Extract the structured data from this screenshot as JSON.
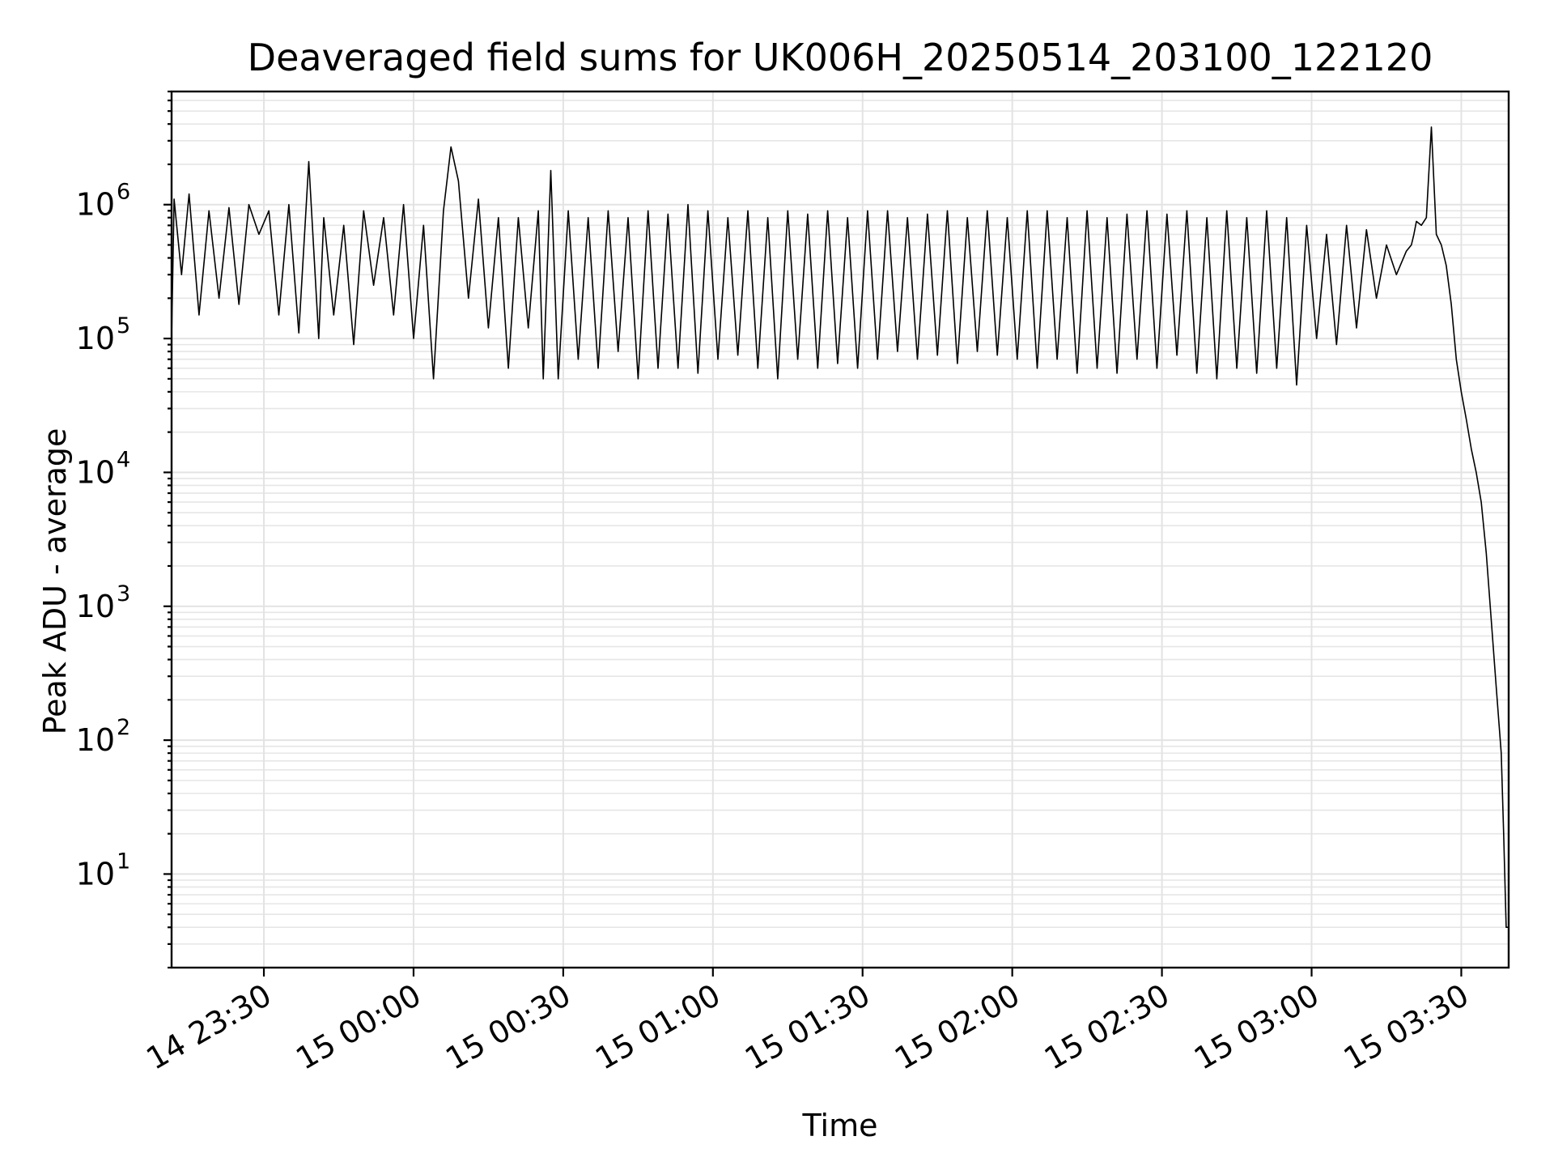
{
  "chart_data": {
    "type": "line",
    "title": "Deaveraged field sums for UK006H_20250514_203100_122120",
    "xlabel": "Time",
    "ylabel": "Peak ADU - average",
    "yscale": "log",
    "grid": true,
    "x_range": [
      "2025-05-14T23:11:30",
      "2025-05-15T03:39:30"
    ],
    "ylim": [
      2,
      7000000
    ],
    "xticks": [
      {
        "time": "2025-05-14T23:30:00",
        "label": "14 23:30"
      },
      {
        "time": "2025-05-15T00:00:00",
        "label": "15 00:00"
      },
      {
        "time": "2025-05-15T00:30:00",
        "label": "15 00:30"
      },
      {
        "time": "2025-05-15T01:00:00",
        "label": "15 01:00"
      },
      {
        "time": "2025-05-15T01:30:00",
        "label": "15 01:30"
      },
      {
        "time": "2025-05-15T02:00:00",
        "label": "15 02:00"
      },
      {
        "time": "2025-05-15T02:30:00",
        "label": "15 02:30"
      },
      {
        "time": "2025-05-15T03:00:00",
        "label": "15 03:00"
      },
      {
        "time": "2025-05-15T03:30:00",
        "label": "15 03:30"
      }
    ],
    "yticks": [
      {
        "value": 10,
        "base": "10",
        "exp": "1"
      },
      {
        "value": 100,
        "base": "10",
        "exp": "2"
      },
      {
        "value": 1000,
        "base": "10",
        "exp": "3"
      },
      {
        "value": 10000,
        "base": "10",
        "exp": "4"
      },
      {
        "value": 100000,
        "base": "10",
        "exp": "5"
      },
      {
        "value": 1000000,
        "base": "10",
        "exp": "6"
      }
    ],
    "series": [
      {
        "color": "#000000",
        "x": [
          "2025-05-14T23:11:30",
          "2025-05-14T23:12:00",
          "2025-05-14T23:13:30",
          "2025-05-14T23:15:00",
          "2025-05-14T23:17:00",
          "2025-05-14T23:19:00",
          "2025-05-14T23:21:00",
          "2025-05-14T23:23:00",
          "2025-05-14T23:25:00",
          "2025-05-14T23:27:00",
          "2025-05-14T23:29:00",
          "2025-05-14T23:31:00",
          "2025-05-14T23:33:00",
          "2025-05-14T23:35:00",
          "2025-05-14T23:37:00",
          "2025-05-14T23:39:00",
          "2025-05-14T23:41:00",
          "2025-05-14T23:42:00",
          "2025-05-14T23:44:00",
          "2025-05-14T23:46:00",
          "2025-05-14T23:48:00",
          "2025-05-14T23:50:00",
          "2025-05-14T23:52:00",
          "2025-05-14T23:54:00",
          "2025-05-14T23:56:00",
          "2025-05-14T23:58:00",
          "2025-05-15T00:00:00",
          "2025-05-15T00:02:00",
          "2025-05-15T00:04:00",
          "2025-05-15T00:06:00",
          "2025-05-15T00:07:30",
          "2025-05-15T00:09:00",
          "2025-05-15T00:11:00",
          "2025-05-15T00:13:00",
          "2025-05-15T00:15:00",
          "2025-05-15T00:17:00",
          "2025-05-15T00:19:00",
          "2025-05-15T00:21:00",
          "2025-05-15T00:23:00",
          "2025-05-15T00:25:00",
          "2025-05-15T00:26:00",
          "2025-05-15T00:27:30",
          "2025-05-15T00:29:00",
          "2025-05-15T00:31:00",
          "2025-05-15T00:33:00",
          "2025-05-15T00:35:00",
          "2025-05-15T00:37:00",
          "2025-05-15T00:39:00",
          "2025-05-15T00:41:00",
          "2025-05-15T00:43:00",
          "2025-05-15T00:45:00",
          "2025-05-15T00:47:00",
          "2025-05-15T00:49:00",
          "2025-05-15T00:51:00",
          "2025-05-15T00:53:00",
          "2025-05-15T00:55:00",
          "2025-05-15T00:57:00",
          "2025-05-15T00:59:00",
          "2025-05-15T01:01:00",
          "2025-05-15T01:03:00",
          "2025-05-15T01:05:00",
          "2025-05-15T01:07:00",
          "2025-05-15T01:09:00",
          "2025-05-15T01:11:00",
          "2025-05-15T01:13:00",
          "2025-05-15T01:15:00",
          "2025-05-15T01:17:00",
          "2025-05-15T01:19:00",
          "2025-05-15T01:21:00",
          "2025-05-15T01:23:00",
          "2025-05-15T01:25:00",
          "2025-05-15T01:27:00",
          "2025-05-15T01:29:00",
          "2025-05-15T01:31:00",
          "2025-05-15T01:33:00",
          "2025-05-15T01:35:00",
          "2025-05-15T01:37:00",
          "2025-05-15T01:39:00",
          "2025-05-15T01:41:00",
          "2025-05-15T01:43:00",
          "2025-05-15T01:45:00",
          "2025-05-15T01:47:00",
          "2025-05-15T01:49:00",
          "2025-05-15T01:51:00",
          "2025-05-15T01:53:00",
          "2025-05-15T01:55:00",
          "2025-05-15T01:57:00",
          "2025-05-15T01:59:00",
          "2025-05-15T02:01:00",
          "2025-05-15T02:03:00",
          "2025-05-15T02:05:00",
          "2025-05-15T02:07:00",
          "2025-05-15T02:09:00",
          "2025-05-15T02:11:00",
          "2025-05-15T02:13:00",
          "2025-05-15T02:15:00",
          "2025-05-15T02:17:00",
          "2025-05-15T02:19:00",
          "2025-05-15T02:21:00",
          "2025-05-15T02:23:00",
          "2025-05-15T02:25:00",
          "2025-05-15T02:27:00",
          "2025-05-15T02:29:00",
          "2025-05-15T02:31:00",
          "2025-05-15T02:33:00",
          "2025-05-15T02:35:00",
          "2025-05-15T02:37:00",
          "2025-05-15T02:39:00",
          "2025-05-15T02:41:00",
          "2025-05-15T02:43:00",
          "2025-05-15T02:45:00",
          "2025-05-15T02:47:00",
          "2025-05-15T02:49:00",
          "2025-05-15T02:51:00",
          "2025-05-15T02:53:00",
          "2025-05-15T02:55:00",
          "2025-05-15T02:57:00",
          "2025-05-15T02:59:00",
          "2025-05-15T03:01:00",
          "2025-05-15T03:03:00",
          "2025-05-15T03:05:00",
          "2025-05-15T03:07:00",
          "2025-05-15T03:09:00",
          "2025-05-15T03:11:00",
          "2025-05-15T03:13:00",
          "2025-05-15T03:15:00",
          "2025-05-15T03:17:00",
          "2025-05-15T03:19:00",
          "2025-05-15T03:20:00",
          "2025-05-15T03:20:30",
          "2025-05-15T03:21:00",
          "2025-05-15T03:22:00",
          "2025-05-15T03:23:00",
          "2025-05-15T03:24:00",
          "2025-05-15T03:25:00",
          "2025-05-15T03:26:00",
          "2025-05-15T03:27:00",
          "2025-05-15T03:28:00",
          "2025-05-15T03:29:00",
          "2025-05-15T03:30:00",
          "2025-05-15T03:31:00",
          "2025-05-15T03:32:00",
          "2025-05-15T03:33:00",
          "2025-05-15T03:34:00",
          "2025-05-15T03:35:00",
          "2025-05-15T03:36:00",
          "2025-05-15T03:37:00",
          "2025-05-15T03:38:00",
          "2025-05-15T03:38:30",
          "2025-05-15T03:39:00",
          "2025-05-15T03:39:30"
        ],
        "y": [
          100000,
          1100000,
          300000,
          1200000,
          150000,
          900000,
          200000,
          950000,
          180000,
          1000000,
          600000,
          900000,
          150000,
          1000000,
          110000,
          2100000,
          100000,
          800000,
          150000,
          700000,
          90000,
          900000,
          250000,
          800000,
          150000,
          1000000,
          100000,
          700000,
          50000,
          900000,
          2700000,
          1500000,
          200000,
          1100000,
          120000,
          800000,
          60000,
          800000,
          120000,
          900000,
          50000,
          1800000,
          50000,
          900000,
          70000,
          800000,
          60000,
          900000,
          80000,
          800000,
          50000,
          900000,
          60000,
          850000,
          60000,
          1000000,
          55000,
          900000,
          70000,
          800000,
          75000,
          900000,
          60000,
          800000,
          50000,
          900000,
          70000,
          850000,
          60000,
          900000,
          65000,
          800000,
          60000,
          900000,
          70000,
          900000,
          80000,
          800000,
          70000,
          850000,
          75000,
          900000,
          65000,
          800000,
          80000,
          900000,
          75000,
          800000,
          70000,
          900000,
          60000,
          900000,
          70000,
          800000,
          55000,
          900000,
          60000,
          800000,
          55000,
          850000,
          70000,
          900000,
          60000,
          850000,
          75000,
          900000,
          55000,
          800000,
          50000,
          900000,
          60000,
          800000,
          55000,
          900000,
          60000,
          800000,
          45000,
          700000,
          100000,
          600000,
          90000,
          700000,
          120000,
          650000,
          200000,
          500000,
          300000,
          450000,
          500000,
          600000,
          750000,
          700000,
          800000,
          3800000,
          600000,
          500000,
          350000,
          180000,
          70000,
          40000,
          25000,
          15000,
          10000,
          6000,
          2500,
          800,
          250,
          80,
          20,
          4,
          4
        ]
      }
    ]
  }
}
